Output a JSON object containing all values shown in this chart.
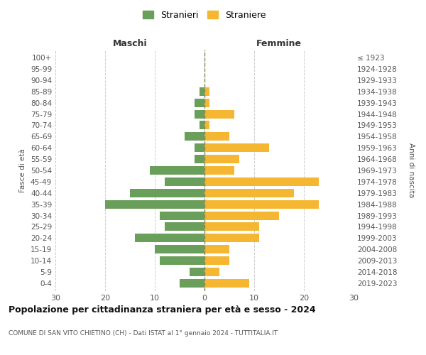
{
  "age_groups": [
    "0-4",
    "5-9",
    "10-14",
    "15-19",
    "20-24",
    "25-29",
    "30-34",
    "35-39",
    "40-44",
    "45-49",
    "50-54",
    "55-59",
    "60-64",
    "65-69",
    "70-74",
    "75-79",
    "80-84",
    "85-89",
    "90-94",
    "95-99",
    "100+"
  ],
  "birth_years": [
    "2019-2023",
    "2014-2018",
    "2009-2013",
    "2004-2008",
    "1999-2003",
    "1994-1998",
    "1989-1993",
    "1984-1988",
    "1979-1983",
    "1974-1978",
    "1969-1973",
    "1964-1968",
    "1959-1963",
    "1954-1958",
    "1949-1953",
    "1944-1948",
    "1939-1943",
    "1934-1938",
    "1929-1933",
    "1924-1928",
    "≤ 1923"
  ],
  "maschi": [
    5,
    3,
    9,
    10,
    14,
    8,
    9,
    20,
    15,
    8,
    11,
    2,
    2,
    4,
    1,
    2,
    2,
    1,
    0,
    0,
    0
  ],
  "femmine": [
    9,
    3,
    5,
    5,
    11,
    11,
    15,
    23,
    18,
    23,
    6,
    7,
    13,
    5,
    1,
    6,
    1,
    1,
    0,
    0,
    0
  ],
  "maschi_color": "#6a9e5b",
  "femmine_color": "#f5b731",
  "title": "Popolazione per cittadinanza straniera per età e sesso - 2024",
  "subtitle": "COMUNE DI SAN VITO CHIETINO (CH) - Dati ISTAT al 1° gennaio 2024 - TUTTITALIA.IT",
  "left_label": "Maschi",
  "right_label": "Femmine",
  "ylabel_left": "Fasce di età",
  "ylabel_right": "Anni di nascita",
  "xlim": 30,
  "legend_stranieri": "Stranieri",
  "legend_straniere": "Straniere",
  "background_color": "#ffffff",
  "grid_color": "#cccccc"
}
